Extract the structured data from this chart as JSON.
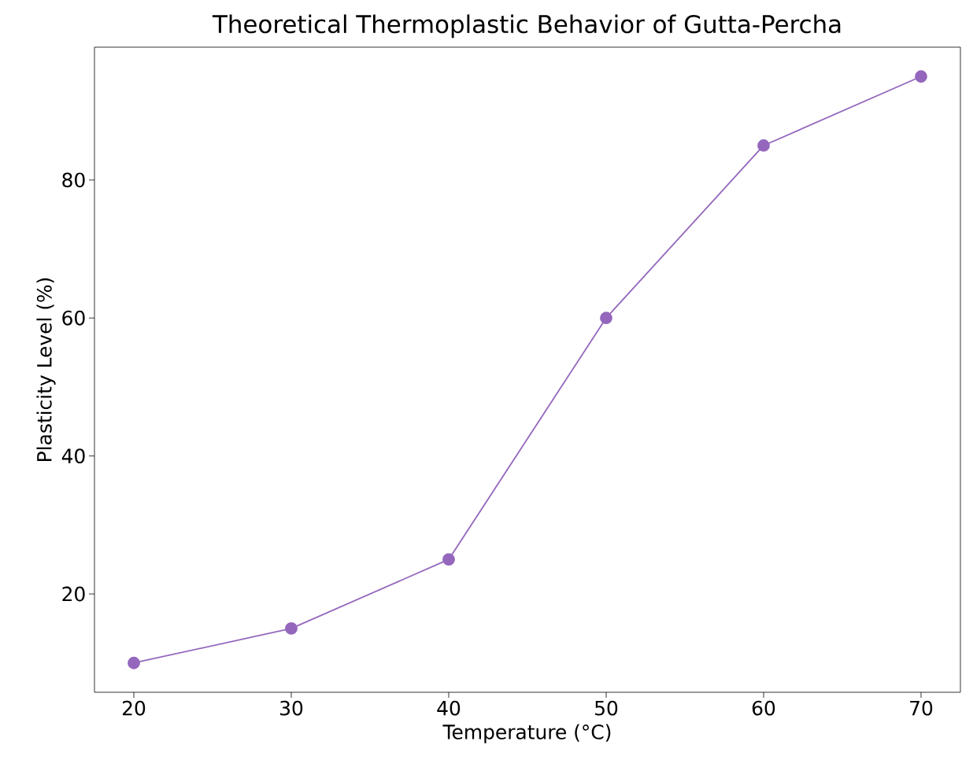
{
  "chart_data": {
    "type": "line",
    "title": "Theoretical Thermoplastic Behavior of Gutta-Percha",
    "xlabel": "Temperature (°C)",
    "ylabel": "Plasticity Level (%)",
    "x": [
      20,
      30,
      40,
      50,
      60,
      70
    ],
    "series": [
      {
        "color": "#9467bd",
        "values": [
          10,
          15,
          25,
          60,
          85,
          95
        ]
      }
    ],
    "xlim": [
      17.5,
      72.5
    ],
    "ylim": [
      5.75,
      99.25
    ],
    "xticks": [
      20,
      30,
      40,
      50,
      60,
      70
    ],
    "yticks": [
      20,
      40,
      60,
      80
    ],
    "marker": "circle",
    "line_style": "solid",
    "grid": false
  }
}
